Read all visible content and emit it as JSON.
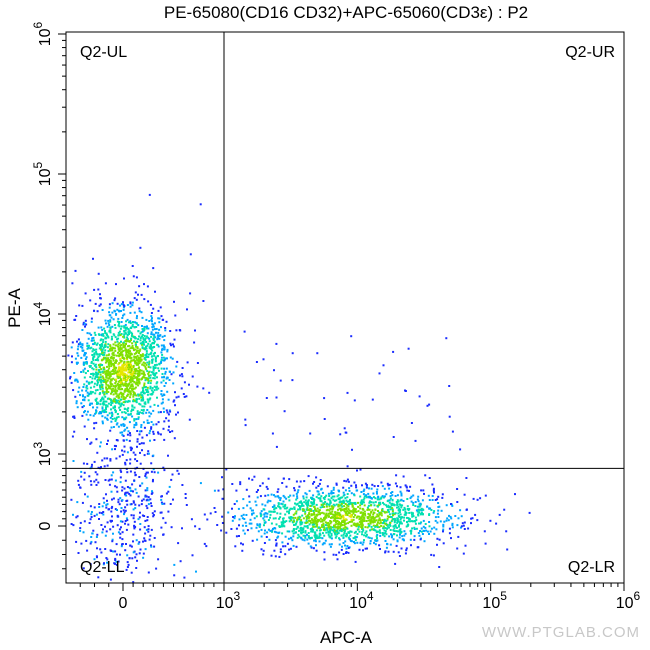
{
  "chart_data": {
    "type": "scatter",
    "title": "PE-65080(CD16 CD32)+APC-65060(CD3ε) : P2",
    "xlabel": "APC-A",
    "ylabel": "PE-A",
    "x_scale": "biexponential",
    "y_scale": "biexponential",
    "xlim": [
      -400,
      1000000
    ],
    "ylim": [
      -400,
      1000000
    ],
    "x_ticks": [
      {
        "value": 0,
        "base": "0",
        "exp": ""
      },
      {
        "value": 1000,
        "base": "10",
        "exp": "3"
      },
      {
        "value": 10000,
        "base": "10",
        "exp": "4"
      },
      {
        "value": 100000,
        "base": "10",
        "exp": "5"
      },
      {
        "value": 1000000,
        "base": "10",
        "exp": "6"
      }
    ],
    "y_ticks": [
      {
        "value": 0,
        "base": "0",
        "exp": ""
      },
      {
        "value": 1000,
        "base": "10",
        "exp": "3"
      },
      {
        "value": 10000,
        "base": "10",
        "exp": "4"
      },
      {
        "value": 100000,
        "base": "10",
        "exp": "5"
      },
      {
        "value": 1000000,
        "base": "10",
        "exp": "6"
      }
    ],
    "gates": {
      "x_threshold": 1000,
      "y_threshold": 800
    },
    "quadrants": [
      {
        "name": "Q2-UL",
        "position": "top-left"
      },
      {
        "name": "Q2-UR",
        "position": "top-right"
      },
      {
        "name": "Q2-LL",
        "position": "bottom-left"
      },
      {
        "name": "Q2-LR",
        "position": "bottom-right"
      }
    ],
    "populations": [
      {
        "center_x": 0,
        "center_y": 4000,
        "count": 1800,
        "spread_x": 0.17,
        "spread_y": 0.33
      },
      {
        "center_x": 8000,
        "center_y": 0,
        "count": 1700,
        "spread_x": 0.42,
        "spread_y": 0.18
      },
      {
        "center_x": 0,
        "center_y": 0,
        "count": 260,
        "spread_x": 0.22,
        "spread_y": 0.2
      }
    ],
    "colormap": [
      "#1a2cff",
      "#00a6ff",
      "#00e0b0",
      "#7fe000",
      "#e6e600"
    ],
    "grid": false,
    "legend": "none"
  },
  "watermark": "WWW.PTGLAB.COM"
}
